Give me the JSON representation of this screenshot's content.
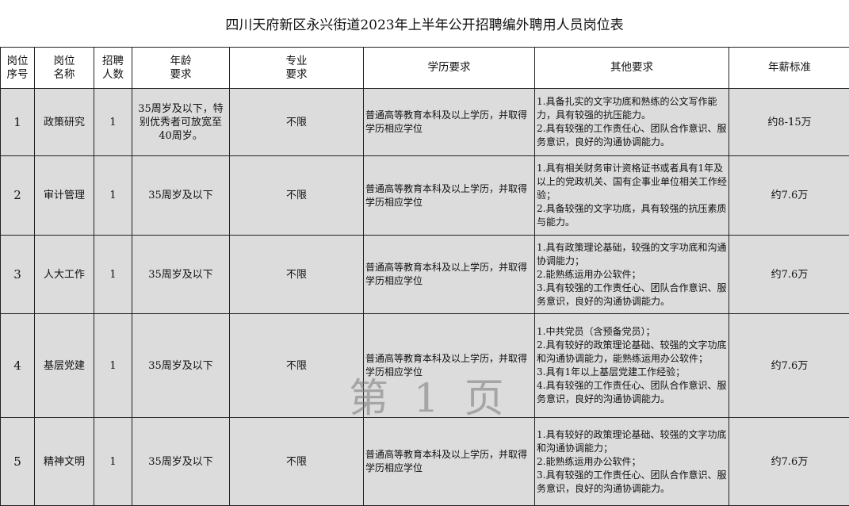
{
  "title": "四川天府新区永兴街道2023年上半年公开招聘编外聘用人员岗位表",
  "headers": [
    "岗位\n序号",
    "岗位\n名称",
    "招聘\n人数",
    "年龄\n要求",
    "专业\n要求",
    "学历要求",
    "其他要求",
    "年薪标准"
  ],
  "rows": [
    {
      "no": "1",
      "name": "政策研究",
      "count": "1",
      "age": "35周岁及以下，特别优秀者可放宽至40周岁。",
      "major": "不限",
      "education": "普通高等教育本科及以上学历，并取得学历相应学位",
      "other": [
        "1.具备扎实的文字功底和熟练的公文写作能力，具有较强的抗压能力。",
        "2.具有较强的工作责任心、团队合作意识、服务意识，良好的沟通协调能力。"
      ],
      "salary": "约8-15万"
    },
    {
      "no": "2",
      "name": "审计管理",
      "count": "1",
      "age": "35周岁及以下",
      "major": "不限",
      "education": "普通高等教育本科及以上学历，并取得学历相应学位",
      "other": [
        "1.具有相关财务审计资格证书或者具有1年及以上的党政机关、国有企事业单位相关工作经验；",
        "2.具备较强的文字功底，具有较强的抗压素质与能力。"
      ],
      "salary": "约7.6万"
    },
    {
      "no": "3",
      "name": "人大工作",
      "count": "1",
      "age": "35周岁及以下",
      "major": "不限",
      "education": "普通高等教育本科及以上学历，并取得学历相应学位",
      "other": [
        "1.具有政策理论基础，较强的文字功底和沟通协调能力；",
        "2.能熟练运用办公软件；",
        "3.具有较强的工作责任心、团队合作意识、服务意识，良好的沟通协调能力。"
      ],
      "salary": "约7.6万"
    },
    {
      "no": "4",
      "name": "基层党建",
      "count": "1",
      "age": "35周岁及以下",
      "major": "不限",
      "education": "普通高等教育本科及以上学历，并取得学历相应学位",
      "other": [
        "1.中共党员（含预备党员）；",
        "2.具有较好的政策理论基础、较强的文字功底和沟通协调能力，能熟练运用办公软件；",
        "3.具有1年以上基层党建工作经验；",
        "4.具有较强的工作责任心、团队合作意识、服务意识，良好的沟通协调能力。"
      ],
      "salary": "约7.6万"
    },
    {
      "no": "5",
      "name": "精神文明",
      "count": "1",
      "age": "35周岁及以下",
      "major": "不限",
      "education": "普通高等教育本科及以上学历，并取得学历相应学位",
      "other": [
        "1.具有较好的政策理论基础、较强的文字功底和沟通协调能力；",
        "2.能熟练运用办公软件；",
        "3.具有较强的工作责任心、团队合作意识、服务意识，良好的沟通协调能力。"
      ],
      "salary": "约7.6万"
    }
  ],
  "watermark": "第 1 页"
}
